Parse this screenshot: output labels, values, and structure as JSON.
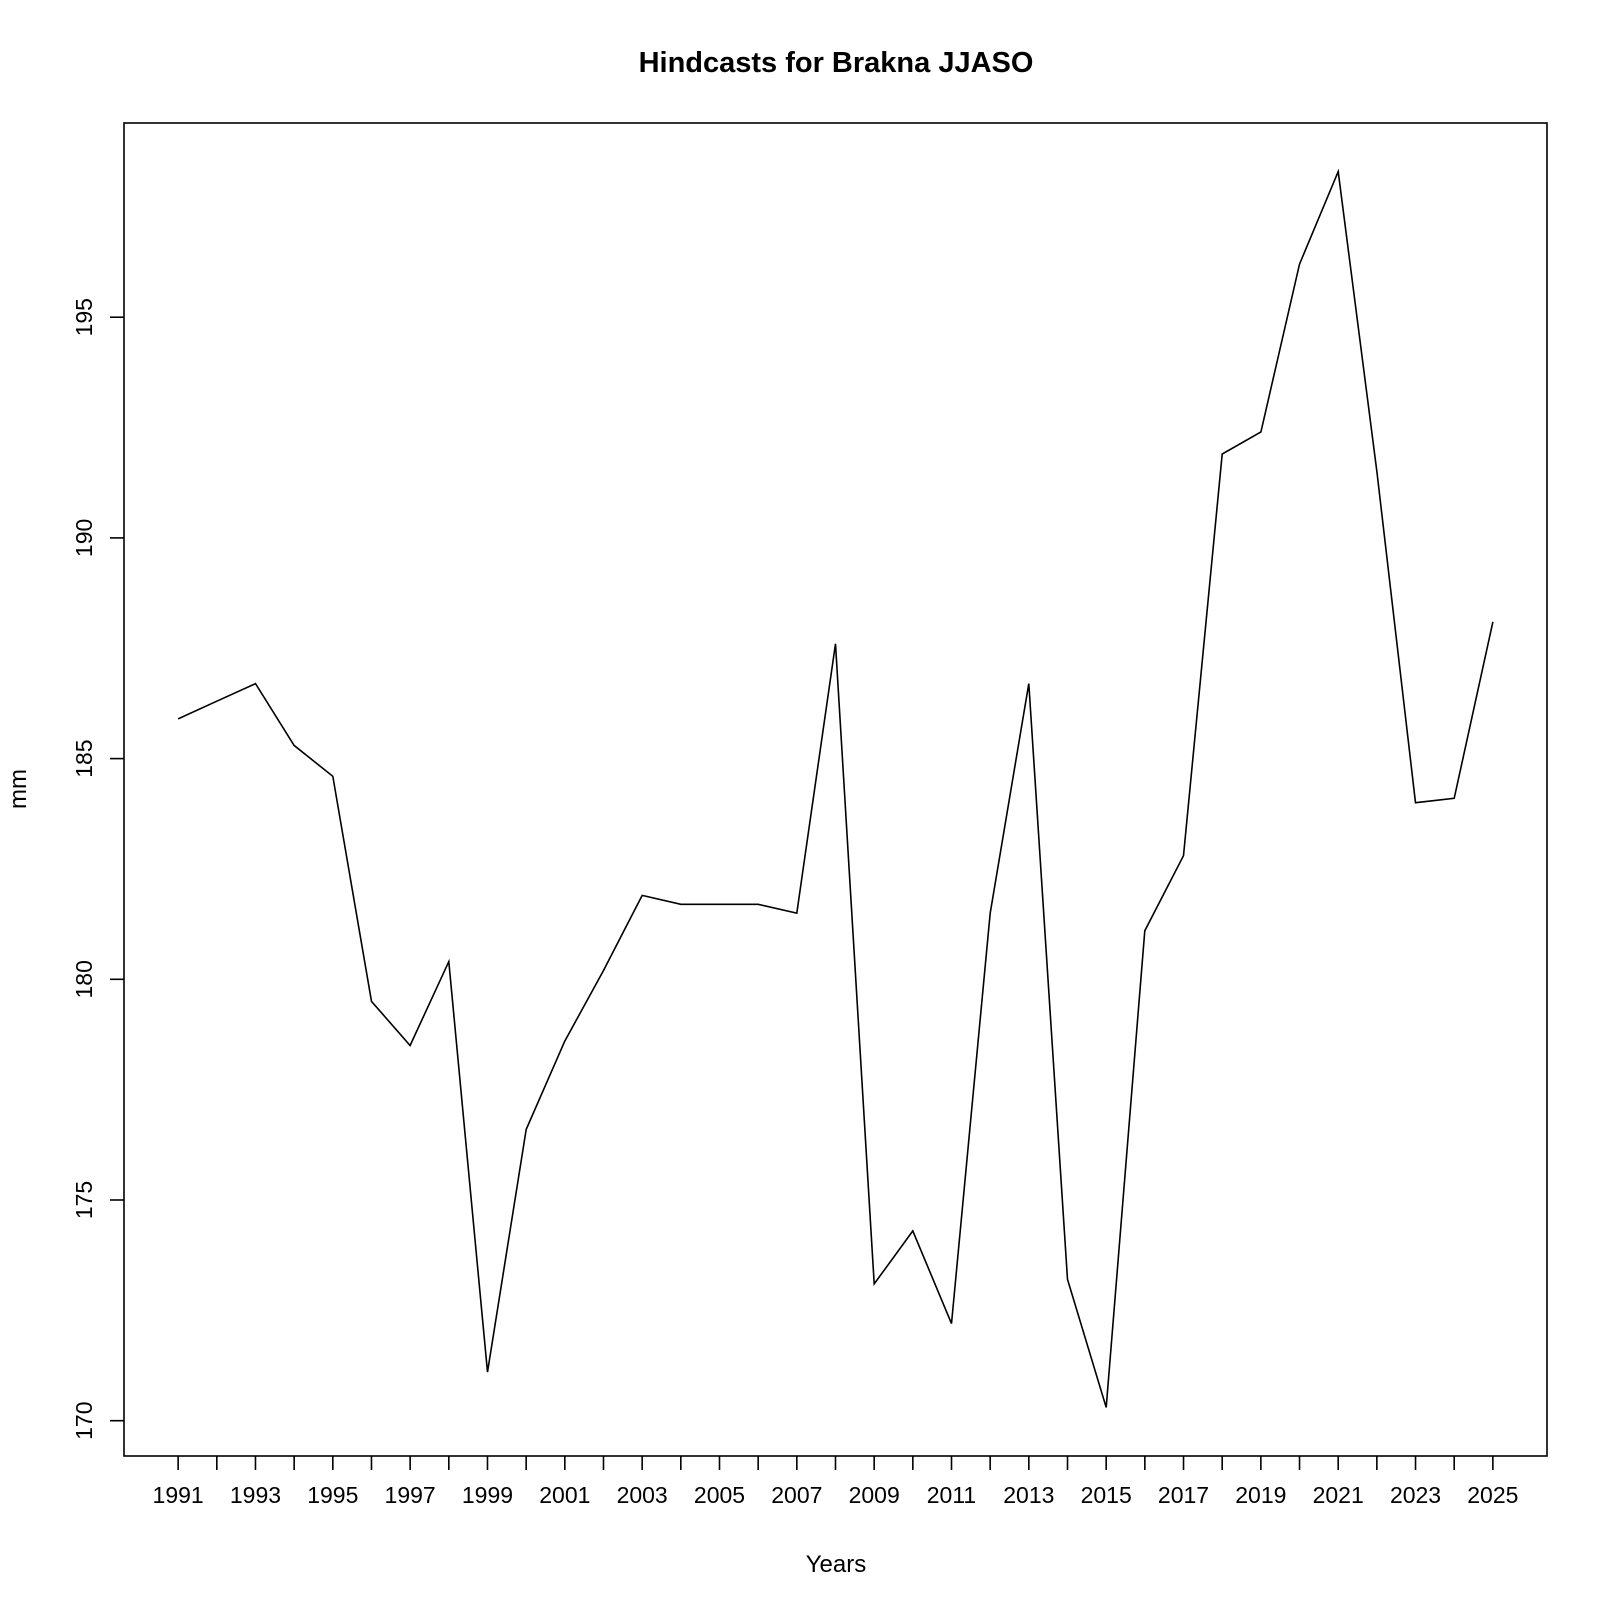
{
  "chart_data": {
    "type": "line",
    "title": "Hindcasts for Brakna JJASO",
    "xlabel": "Years",
    "ylabel": "mm",
    "xlim": [
      1989.6,
      2026.4
    ],
    "ylim": [
      169.2,
      199.4
    ],
    "x_tick_labels": [
      "1991",
      "1993",
      "1995",
      "1997",
      "1999",
      "2001",
      "2003",
      "2005",
      "2007",
      "2009",
      "2011",
      "2013",
      "2015",
      "2017",
      "2019",
      "2021",
      "2023",
      "2025"
    ],
    "y_ticks": [
      170,
      175,
      180,
      185,
      190,
      195
    ],
    "y_tick_labels": [
      "170",
      "175",
      "180",
      "185",
      "190",
      "195"
    ],
    "grid": false,
    "legend": "none",
    "series": [
      {
        "x": [
          1991,
          1992,
          1993,
          1994,
          1995,
          1996,
          1997,
          1998,
          1999,
          2000,
          2001,
          2002,
          2003,
          2004,
          2005,
          2006,
          2007,
          2008,
          2009,
          2010,
          2011,
          2012,
          2013,
          2014,
          2015,
          2016,
          2017,
          2018,
          2019,
          2020,
          2021,
          2022,
          2023,
          2024,
          2025
        ],
        "values": [
          185.9,
          186.3,
          186.7,
          185.3,
          184.6,
          179.5,
          178.5,
          180.4,
          171.1,
          176.6,
          178.6,
          180.2,
          181.9,
          181.7,
          181.7,
          181.7,
          181.5,
          187.6,
          173.1,
          174.3,
          172.2,
          181.5,
          186.7,
          173.2,
          170.3,
          181.1,
          182.8,
          191.9,
          192.4,
          196.2,
          198.3,
          191.5,
          184.0,
          184.1,
          188.1
        ]
      }
    ]
  }
}
